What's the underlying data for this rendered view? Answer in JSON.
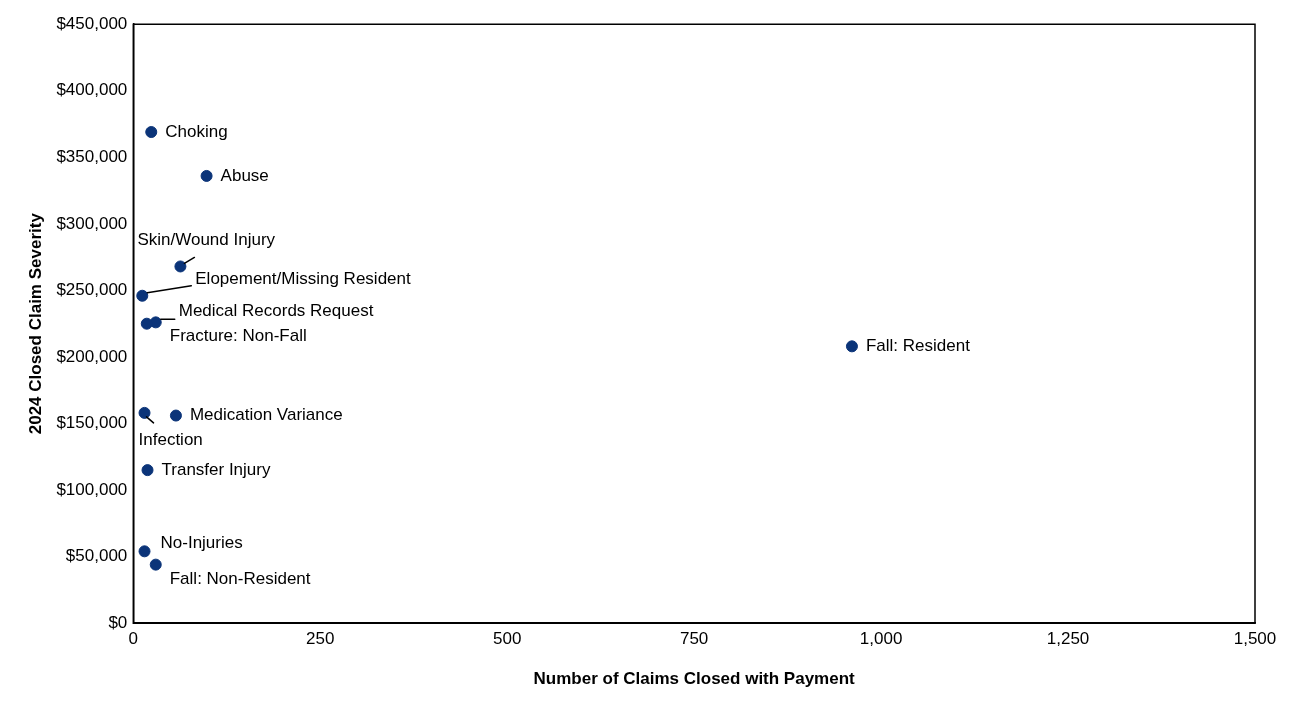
{
  "chart_data": {
    "type": "scatter",
    "xlabel": "Number of Claims Closed with Payment",
    "ylabel": "2024 Closed Claim Severity",
    "series": [
      {
        "color": "#0b3479",
        "x": [
          24,
          98,
          63,
          12,
          30,
          18,
          961,
          57,
          15,
          19,
          15,
          30
        ],
        "values": [
          369000,
          336000,
          268000,
          246000,
          226000,
          225000,
          208000,
          156000,
          158000,
          115000,
          54000,
          44000
        ]
      }
    ],
    "annotations": [
      {
        "text": "Choking",
        "x": 24,
        "y": 369000
      },
      {
        "text": "Abuse",
        "x": 98,
        "y": 336000
      },
      {
        "text": "Skin/Wound Injury",
        "x": 63,
        "y": 268000
      },
      {
        "text": "Elopement/Missing Resident",
        "x": 12,
        "y": 246000
      },
      {
        "text": "Medical Records Request",
        "x": 30,
        "y": 226000
      },
      {
        "text": "Fracture: Non-Fall",
        "x": 18,
        "y": 225000
      },
      {
        "text": "Fall: Resident",
        "x": 961,
        "y": 208000
      },
      {
        "text": "Medication Variance",
        "x": 57,
        "y": 156000
      },
      {
        "text": "Infection",
        "x": 15,
        "y": 158000
      },
      {
        "text": "Transfer Injury",
        "x": 19,
        "y": 115000
      },
      {
        "text": "No-Injuries",
        "x": 15,
        "y": 54000
      },
      {
        "text": "Fall: Non-Resident",
        "x": 30,
        "y": 44000
      }
    ],
    "xlim": [
      0,
      1500
    ],
    "xticks": [
      {
        "value": 0,
        "label": "0"
      },
      {
        "value": 250,
        "label": "250"
      },
      {
        "value": 500,
        "label": "500"
      },
      {
        "value": 750,
        "label": "750"
      },
      {
        "value": 1000,
        "label": "1,000"
      },
      {
        "value": 1250,
        "label": "1,250"
      },
      {
        "value": 1500,
        "label": "1,500"
      }
    ],
    "ylim": [
      0,
      450000
    ],
    "yticks": [
      {
        "value": 0,
        "label": "$0"
      },
      {
        "value": 50000,
        "label": "$50,000"
      },
      {
        "value": 100000,
        "label": "$100,000"
      },
      {
        "value": 150000,
        "label": "$150,000"
      },
      {
        "value": 200000,
        "label": "$200,000"
      },
      {
        "value": 250000,
        "label": "$250,000"
      },
      {
        "value": 300000,
        "label": "$300,000"
      },
      {
        "value": 350000,
        "label": "$350,000"
      },
      {
        "value": 400000,
        "label": "$400,000"
      },
      {
        "value": 450000,
        "label": "$450,000"
      }
    ],
    "grid": false,
    "legend": false,
    "marker": "circle"
  }
}
